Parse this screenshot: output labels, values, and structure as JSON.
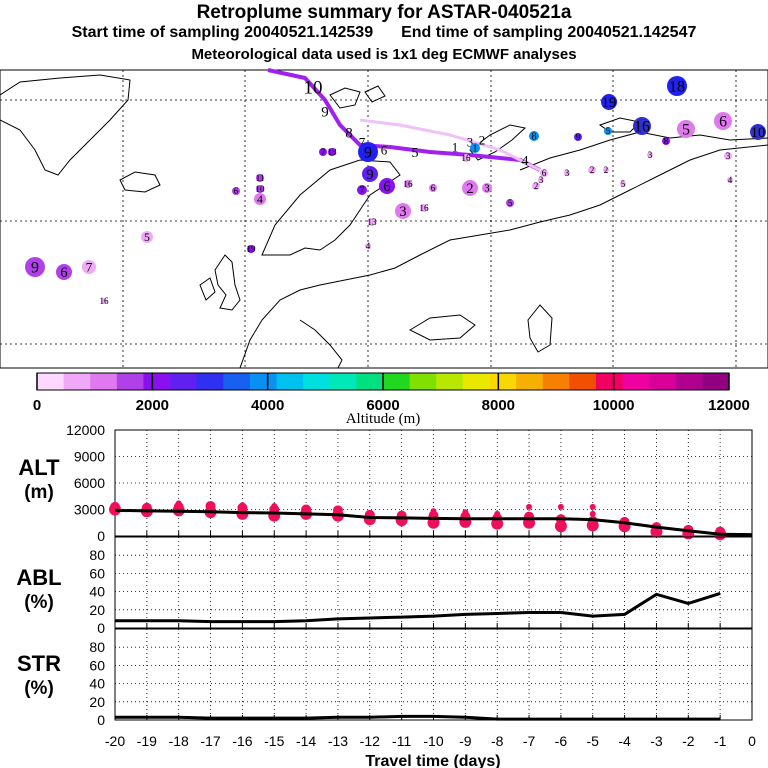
{
  "header": {
    "title": "Retroplume summary for ASTAR-040521a",
    "start_label": "Start time of sampling 20040521.142539",
    "end_label": "End time of sampling 20040521.142547",
    "met_label": "Meteorological data used is 1x1 deg ECMWF analyses"
  },
  "colorbar": {
    "ticks": [
      "0",
      "2000",
      "4000",
      "6000",
      "8000",
      "10000",
      "12000"
    ],
    "label": "Altitude (m)",
    "colors": [
      "#ffd8ff",
      "#f0a8f8",
      "#e078f0",
      "#b040e8",
      "#8a10f0",
      "#6020f0",
      "#3030f0",
      "#1860f0",
      "#0a90f0",
      "#00c0f0",
      "#00e0e0",
      "#00e8b8",
      "#00e080",
      "#20d820",
      "#80e000",
      "#b8e800",
      "#e8e800",
      "#f8d800",
      "#f8b000",
      "#f88000",
      "#f05000",
      "#f00060",
      "#f000a0",
      "#d80098",
      "#b00090",
      "#900080"
    ]
  },
  "map": {
    "trajectory_labels": [
      "10",
      "9",
      "8",
      "7",
      "6",
      "5",
      "4",
      "3",
      "2",
      "1"
    ],
    "cluster_labels": [
      "1",
      "2",
      "3",
      "4",
      "5",
      "6",
      "7",
      "8",
      "9",
      "10",
      "11",
      "13",
      "16",
      "18",
      "19"
    ]
  },
  "chart_data": [
    {
      "type": "line",
      "panel": "ALT",
      "ylabel": "ALT (m)",
      "x": [
        -20,
        -19,
        -18,
        -17,
        -16,
        -15,
        -14,
        -13,
        -12,
        -11,
        -10,
        -9,
        -8,
        -7,
        -6,
        -5,
        -4,
        -3,
        -2,
        -1,
        0
      ],
      "ylim": [
        0,
        12000
      ],
      "yticks": [
        "12000",
        "9000",
        "6000",
        "3000",
        "0"
      ],
      "series": [
        {
          "name": "mean altitude",
          "values": [
            2900,
            2850,
            2800,
            2750,
            2650,
            2600,
            2500,
            2400,
            2100,
            2050,
            2000,
            1950,
            1950,
            1950,
            1950,
            1850,
            1500,
            1000,
            600,
            200,
            150
          ]
        }
      ],
      "clusters": [
        {
          "x": -20,
          "alt": [
            3000,
            3300,
            2700
          ]
        },
        {
          "x": -19,
          "alt": [
            2800,
            3200
          ]
        },
        {
          "x": -18,
          "alt": [
            2900,
            3300,
            3700,
            2600
          ]
        },
        {
          "x": -17,
          "alt": [
            2700,
            3400,
            3600
          ]
        },
        {
          "x": -16,
          "alt": [
            2500,
            3200,
            3500
          ]
        },
        {
          "x": -15,
          "alt": [
            2300,
            3000,
            3400
          ]
        },
        {
          "x": -14,
          "alt": [
            2500,
            3000
          ]
        },
        {
          "x": -13,
          "alt": [
            2300,
            2900
          ]
        },
        {
          "x": -12,
          "alt": [
            1900,
            2400
          ]
        },
        {
          "x": -11,
          "alt": [
            1800,
            2300,
            1400
          ]
        },
        {
          "x": -10,
          "alt": [
            1500,
            2300,
            2800
          ]
        },
        {
          "x": -9,
          "alt": [
            1600,
            2200,
            2700
          ]
        },
        {
          "x": -8,
          "alt": [
            1400,
            2000,
            2500
          ]
        },
        {
          "x": -7,
          "alt": [
            1500,
            2200,
            3300
          ]
        },
        {
          "x": -6,
          "alt": [
            1100,
            1900,
            3300
          ]
        },
        {
          "x": -5,
          "alt": [
            1200,
            1700,
            2500,
            3300
          ]
        },
        {
          "x": -4,
          "alt": [
            1100,
            1600
          ]
        },
        {
          "x": -3,
          "alt": [
            500,
            1000
          ]
        },
        {
          "x": -2,
          "alt": [
            300,
            700
          ]
        },
        {
          "x": -1,
          "alt": [
            200,
            500
          ]
        }
      ]
    },
    {
      "type": "line",
      "panel": "ABL",
      "ylabel": "ABL (%)",
      "x": [
        -20,
        -19,
        -18,
        -17,
        -16,
        -15,
        -14,
        -13,
        -12,
        -11,
        -10,
        -9,
        -8,
        -7,
        -6,
        -5,
        -4,
        -3,
        -2,
        -1
      ],
      "ylim": [
        0,
        100
      ],
      "yticks": [
        "80",
        "60",
        "40",
        "20",
        "0"
      ],
      "series": [
        {
          "name": "ABL fraction",
          "values": [
            8,
            8,
            8,
            7,
            7,
            7,
            8,
            10,
            11,
            12,
            13,
            15,
            16,
            17,
            17,
            13,
            15,
            37,
            27,
            38
          ]
        }
      ]
    },
    {
      "type": "line",
      "panel": "STR",
      "ylabel": "STR (%)",
      "xlabel": "Travel time (days)",
      "x": [
        -20,
        -19,
        -18,
        -17,
        -16,
        -15,
        -14,
        -13,
        -12,
        -11,
        -10,
        -9,
        -8,
        -7,
        -6,
        -5,
        -4,
        -3,
        -2,
        -1
      ],
      "ylim": [
        0,
        100
      ],
      "yticks": [
        "80",
        "60",
        "40",
        "20",
        "0"
      ],
      "xticks": [
        "-20",
        "-19",
        "-18",
        "-17",
        "-16",
        "-15",
        "-14",
        "-13",
        "-12",
        "-11",
        "-10",
        "-9",
        "-8",
        "-7",
        "-6",
        "-5",
        "-4",
        "-3",
        "-2",
        "-1",
        "0"
      ],
      "series": [
        {
          "name": "stratospheric fraction",
          "values": [
            3,
            3,
            3,
            2,
            2,
            2,
            2,
            3,
            3,
            4,
            4,
            3,
            1,
            1,
            1,
            1,
            1,
            1,
            1,
            1
          ]
        }
      ]
    }
  ]
}
